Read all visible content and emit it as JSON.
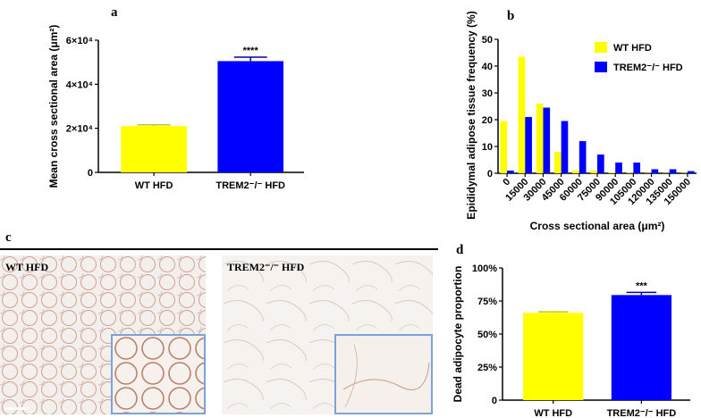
{
  "panels": {
    "a": "a",
    "b": "b",
    "c": "c",
    "d": "d"
  },
  "colors": {
    "wt": "#ffff00",
    "ko": "#0000ff",
    "inset_border": "#7aa3d8"
  },
  "chart_data": [
    {
      "id": "a",
      "type": "bar",
      "categories": [
        "WT HFD",
        "TREM2⁻/⁻ HFD"
      ],
      "values": [
        21000,
        50500
      ],
      "errors": [
        600,
        1800
      ],
      "significance": [
        "",
        "****"
      ],
      "ylabel": "Mean cross sectional area (μm²)",
      "ylim": [
        0,
        60000
      ],
      "yticks": [
        "0",
        "2×10⁴",
        "4×10⁴",
        "6×10⁴"
      ]
    },
    {
      "id": "b",
      "type": "bar",
      "categories": [
        "0",
        "15000",
        "30000",
        "45000",
        "60000",
        "75000",
        "90000",
        "105000",
        "120000",
        "135000",
        "150000"
      ],
      "series": [
        {
          "name": "WT HFD",
          "values": [
            19.5,
            43.5,
            26,
            8,
            1,
            1,
            0.3,
            0.2,
            0.1,
            0.1,
            0.1
          ]
        },
        {
          "name": "TREM2⁻/⁻ HFD",
          "values": [
            1,
            21,
            24.5,
            19.5,
            12,
            7,
            4,
            4,
            1.5,
            1.5,
            0.8
          ]
        }
      ],
      "xlabel": "Cross sectional area (μm²)",
      "ylabel": "Epididymal adipose tissue frequency (%)",
      "ylim": [
        0,
        50
      ],
      "yticks": [
        "0",
        "10",
        "20",
        "30",
        "40",
        "50"
      ],
      "legend_position": "top-right"
    },
    {
      "id": "d",
      "type": "bar",
      "categories": [
        "WT HFD",
        "TREM2⁻/⁻ HFD"
      ],
      "values": [
        66,
        79.5
      ],
      "errors": [
        0.8,
        2
      ],
      "significance": [
        "",
        "***"
      ],
      "ylabel": "Dead adipocyte proportion",
      "ylim": [
        0,
        100
      ],
      "yticks": [
        "0",
        "25%",
        "50%",
        "75%",
        "100%"
      ]
    }
  ],
  "micrographs": {
    "left_label": "WT HFD",
    "right_label": "TREM2⁻/⁻ HFD"
  }
}
